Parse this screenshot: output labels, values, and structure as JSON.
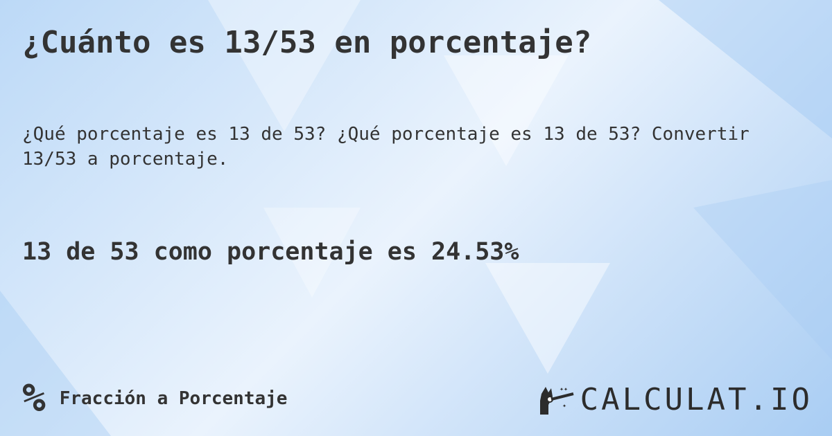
{
  "title": "¿Cuánto es 13/53 en porcentaje?",
  "subtitle": "¿Qué porcentaje es 13 de 53? ¿Qué porcentaje es 13 de 53? Convertir 13/53 a porcentaje.",
  "answer": "13 de 53 como porcentaje es 24.53%",
  "category": {
    "icon": "percent-icon",
    "symbol": "%",
    "label": "Fracción a Porcentaje"
  },
  "logo": {
    "text": "CALCULAT.IO",
    "icon": "magic-hand-icon"
  },
  "colors": {
    "text": "#333333",
    "background": "#cfe3f9"
  }
}
